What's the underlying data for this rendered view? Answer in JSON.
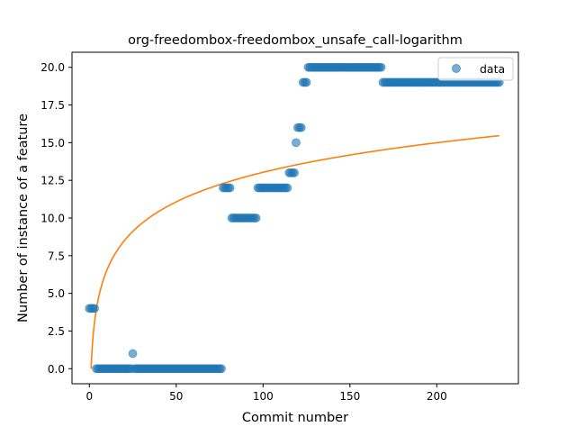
{
  "chart_data": {
    "type": "scatter",
    "title": "org-freedombox-freedombox_unsafe_call-logarithm",
    "xlabel": "Commit number",
    "ylabel": "Number of instance of a feature",
    "xlim": [
      -10,
      247
    ],
    "ylim": [
      -1,
      21
    ],
    "x_ticks": [
      0,
      50,
      100,
      150,
      200
    ],
    "x_tick_labels": [
      "0",
      "50",
      "100",
      "150",
      "200"
    ],
    "y_ticks": [
      0,
      2.5,
      5,
      7.5,
      10,
      12.5,
      15,
      17.5,
      20
    ],
    "y_tick_labels": [
      "0.0",
      "2.5",
      "5.0",
      "7.5",
      "10.0",
      "12.5",
      "15.0",
      "17.5",
      "20.0"
    ],
    "grid": false,
    "legend": {
      "placement": "top-right",
      "entries": [
        "data"
      ]
    },
    "colors": {
      "data": "#1f77b4",
      "fit": "#ff7f0e"
    },
    "series": [
      {
        "name": "data",
        "kind": "scatter",
        "segments": [
          {
            "x_from": 0,
            "x_to": 3,
            "y": 4
          },
          {
            "x_from": 4,
            "x_to": 24,
            "y": 0
          },
          {
            "x_from": 25,
            "x_to": 25,
            "y": 1
          },
          {
            "x_from": 26,
            "x_to": 76,
            "y": 0
          },
          {
            "x_from": 77,
            "x_to": 81,
            "y": 12
          },
          {
            "x_from": 82,
            "x_to": 96,
            "y": 10
          },
          {
            "x_from": 97,
            "x_to": 114,
            "y": 12
          },
          {
            "x_from": 115,
            "x_to": 118,
            "y": 13
          },
          {
            "x_from": 119,
            "x_to": 119,
            "y": 15
          },
          {
            "x_from": 120,
            "x_to": 122,
            "y": 16
          },
          {
            "x_from": 123,
            "x_to": 125,
            "y": 19
          },
          {
            "x_from": 126,
            "x_to": 168,
            "y": 20
          },
          {
            "x_from": 169,
            "x_to": 236,
            "y": 19
          }
        ]
      },
      {
        "kind": "line",
        "model": "logarithmic",
        "coefficients": {
          "a": 2.83,
          "b": 0.0
        },
        "x_range": [
          1,
          236
        ]
      }
    ]
  }
}
